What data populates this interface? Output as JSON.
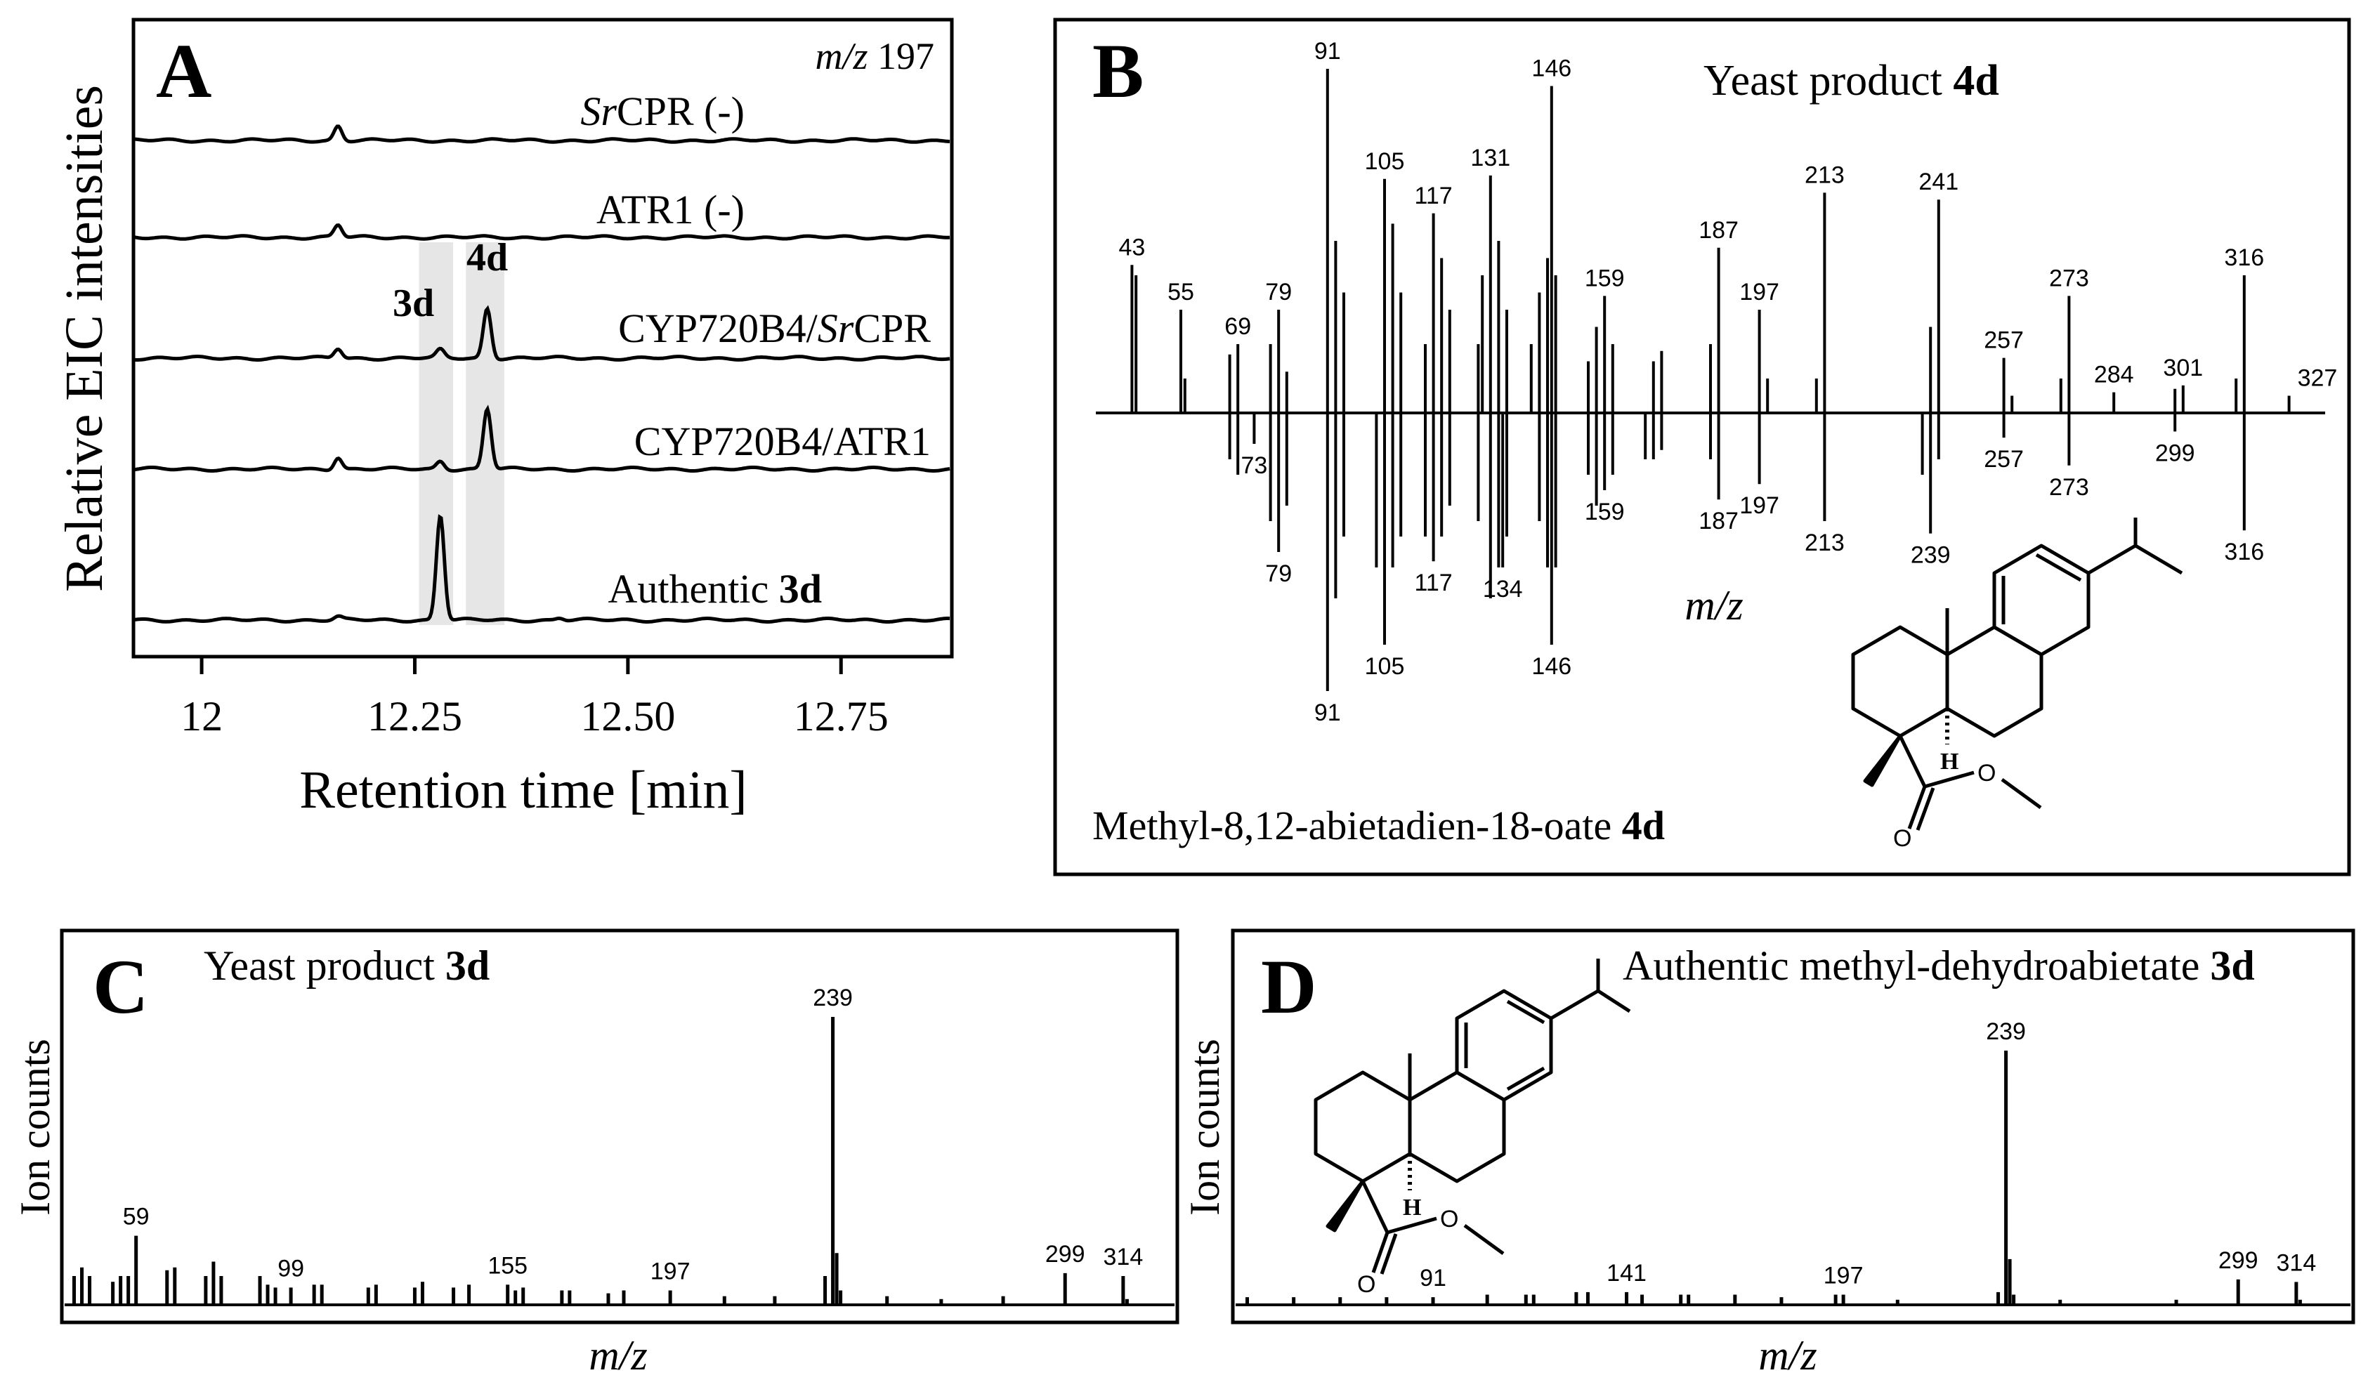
{
  "figure": {
    "colors": {
      "ink": "#000000",
      "highlight": "#e6e6e6",
      "background": "#ffffff"
    }
  },
  "chart_data": [
    {
      "id": "A",
      "panel_letter": "A",
      "type": "line",
      "ylabel": "Relative EIC intensities",
      "xlabel": "Retention time  [min]",
      "mz_label_prefix": "m/z",
      "mz_label_value": "197",
      "xlim": [
        11.92,
        12.88
      ],
      "x_ticks": [
        {
          "value": 12,
          "label": "12"
        },
        {
          "value": 12.25,
          "label": "12.25"
        },
        {
          "value": 12.5,
          "label": "12.50"
        },
        {
          "value": 12.75,
          "label": "12.75"
        }
      ],
      "shaded_regions": [
        {
          "label": "3d",
          "from": 12.255,
          "to": 12.295
        },
        {
          "label": "4d",
          "from": 12.31,
          "to": 12.355
        }
      ],
      "peak_labels": [
        {
          "text": "3d",
          "x": 12.255
        },
        {
          "text": "4d",
          "x": 12.335
        }
      ],
      "series": [
        {
          "name_prefix": "Sr",
          "name_rest": "CPR (-)",
          "name_bold": "",
          "peaks": [
            {
              "x": 12.16,
              "height": 0.18
            }
          ]
        },
        {
          "name_prefix": "",
          "name_rest": "ATR1 (-)",
          "name_bold": "",
          "peaks": [
            {
              "x": 12.16,
              "height": 0.15
            }
          ]
        },
        {
          "name_prefix": "",
          "name_rest": "CYP720B4/",
          "name_italic": "Sr",
          "name_tail": "CPR",
          "name_bold": "",
          "peaks": [
            {
              "x": 12.16,
              "height": 0.12
            },
            {
              "x": 12.28,
              "height": 0.1
            },
            {
              "x": 12.335,
              "height": 0.62
            }
          ]
        },
        {
          "name_prefix": "",
          "name_rest": "CYP720B4/ATR1",
          "name_bold": "",
          "peaks": [
            {
              "x": 12.16,
              "height": 0.15
            },
            {
              "x": 12.28,
              "height": 0.1
            },
            {
              "x": 12.335,
              "height": 0.75
            }
          ]
        },
        {
          "name_prefix": "",
          "name_rest": "Authentic ",
          "name_bold": "3d",
          "peaks": [
            {
              "x": 12.16,
              "height": 0.04
            },
            {
              "x": 12.28,
              "height": 1.3
            },
            {
              "x": 12.42,
              "height": 0.03
            }
          ]
        }
      ]
    },
    {
      "id": "B",
      "panel_letter": "B",
      "type": "bar",
      "title_plain": "Yeast product ",
      "title_bold": "4d",
      "xlabel": "m/z",
      "compound_plain": "Methyl-8,12-abietadien-18-oate  ",
      "compound_bold": "4d",
      "xlim": [
        35,
        335
      ],
      "top_spectrum": [
        [
          43,
          0.43
        ],
        [
          44,
          0.4
        ],
        [
          55,
          0.3
        ],
        [
          56,
          0.1
        ],
        [
          67,
          0.17
        ],
        [
          69,
          0.2
        ],
        [
          77,
          0.2
        ],
        [
          79,
          0.3
        ],
        [
          81,
          0.12
        ],
        [
          91,
          1.0
        ],
        [
          93,
          0.5
        ],
        [
          95,
          0.35
        ],
        [
          105,
          0.68
        ],
        [
          107,
          0.55
        ],
        [
          109,
          0.35
        ],
        [
          115,
          0.2
        ],
        [
          117,
          0.58
        ],
        [
          119,
          0.45
        ],
        [
          121,
          0.3
        ],
        [
          128,
          0.2
        ],
        [
          129,
          0.4
        ],
        [
          131,
          0.69
        ],
        [
          133,
          0.5
        ],
        [
          135,
          0.3
        ],
        [
          141,
          0.2
        ],
        [
          143,
          0.35
        ],
        [
          145,
          0.45
        ],
        [
          146,
          0.95
        ],
        [
          147,
          0.4
        ],
        [
          155,
          0.15
        ],
        [
          157,
          0.25
        ],
        [
          159,
          0.34
        ],
        [
          161,
          0.2
        ],
        [
          171,
          0.15
        ],
        [
          173,
          0.18
        ],
        [
          185,
          0.2
        ],
        [
          187,
          0.48
        ],
        [
          197,
          0.3
        ],
        [
          199,
          0.1
        ],
        [
          211,
          0.1
        ],
        [
          213,
          0.64
        ],
        [
          239,
          0.25
        ],
        [
          241,
          0.62
        ],
        [
          257,
          0.16
        ],
        [
          259,
          0.05
        ],
        [
          271,
          0.1
        ],
        [
          273,
          0.34
        ],
        [
          284,
          0.06
        ],
        [
          299,
          0.07
        ],
        [
          301,
          0.08
        ],
        [
          314,
          0.1
        ],
        [
          316,
          0.4
        ],
        [
          327,
          0.05
        ]
      ],
      "bottom_spectrum": [
        [
          67,
          0.15
        ],
        [
          69,
          0.2
        ],
        [
          73,
          0.1
        ],
        [
          77,
          0.35
        ],
        [
          79,
          0.45
        ],
        [
          81,
          0.3
        ],
        [
          91,
          0.9
        ],
        [
          93,
          0.6
        ],
        [
          95,
          0.4
        ],
        [
          103,
          0.5
        ],
        [
          105,
          0.75
        ],
        [
          107,
          0.5
        ],
        [
          109,
          0.4
        ],
        [
          115,
          0.4
        ],
        [
          117,
          0.48
        ],
        [
          119,
          0.4
        ],
        [
          121,
          0.3
        ],
        [
          128,
          0.35
        ],
        [
          131,
          0.6
        ],
        [
          133,
          0.5
        ],
        [
          134,
          0.5
        ],
        [
          135,
          0.4
        ],
        [
          143,
          0.35
        ],
        [
          145,
          0.5
        ],
        [
          146,
          0.75
        ],
        [
          147,
          0.5
        ],
        [
          155,
          0.2
        ],
        [
          157,
          0.3
        ],
        [
          159,
          0.25
        ],
        [
          161,
          0.2
        ],
        [
          169,
          0.15
        ],
        [
          171,
          0.15
        ],
        [
          173,
          0.12
        ],
        [
          185,
          0.15
        ],
        [
          187,
          0.28
        ],
        [
          197,
          0.23
        ],
        [
          213,
          0.35
        ],
        [
          237,
          0.2
        ],
        [
          239,
          0.39
        ],
        [
          241,
          0.15
        ],
        [
          257,
          0.08
        ],
        [
          273,
          0.17
        ],
        [
          299,
          0.06
        ],
        [
          316,
          0.38
        ]
      ],
      "top_labels": [
        "43",
        "55",
        "69",
        "79",
        "91",
        "105",
        "117",
        "131",
        "146",
        "159",
        "187",
        "197",
        "213",
        "241",
        "257",
        "273",
        "284",
        "301",
        "316",
        "327"
      ],
      "bottom_labels": [
        "73",
        "79",
        "91",
        "105",
        "117",
        "134",
        "146",
        "159",
        "187",
        "197",
        "213",
        "239",
        "257",
        "273",
        "299",
        "316"
      ]
    },
    {
      "id": "C",
      "panel_letter": "C",
      "type": "bar",
      "title_plain": "Yeast product ",
      "title_bold": "3d",
      "ylabel": "Ion counts",
      "xlabel": "m/z",
      "xlim": [
        42,
        326
      ],
      "spectrum": [
        [
          43,
          0.1
        ],
        [
          45,
          0.13
        ],
        [
          47,
          0.1
        ],
        [
          53,
          0.08
        ],
        [
          55,
          0.1
        ],
        [
          57,
          0.1
        ],
        [
          59,
          0.24
        ],
        [
          67,
          0.12
        ],
        [
          69,
          0.13
        ],
        [
          77,
          0.1
        ],
        [
          79,
          0.15
        ],
        [
          81,
          0.1
        ],
        [
          91,
          0.1
        ],
        [
          93,
          0.07
        ],
        [
          95,
          0.06
        ],
        [
          99,
          0.06
        ],
        [
          105,
          0.07
        ],
        [
          107,
          0.07
        ],
        [
          119,
          0.06
        ],
        [
          121,
          0.07
        ],
        [
          131,
          0.06
        ],
        [
          133,
          0.08
        ],
        [
          141,
          0.06
        ],
        [
          145,
          0.07
        ],
        [
          155,
          0.07
        ],
        [
          157,
          0.05
        ],
        [
          159,
          0.06
        ],
        [
          169,
          0.05
        ],
        [
          171,
          0.05
        ],
        [
          181,
          0.04
        ],
        [
          185,
          0.05
        ],
        [
          197,
          0.05
        ],
        [
          211,
          0.03
        ],
        [
          224,
          0.03
        ],
        [
          237,
          0.1
        ],
        [
          239,
          1.0
        ],
        [
          240,
          0.18
        ],
        [
          241,
          0.05
        ],
        [
          253,
          0.03
        ],
        [
          267,
          0.02
        ],
        [
          283,
          0.03
        ],
        [
          299,
          0.11
        ],
        [
          314,
          0.1
        ],
        [
          315,
          0.02
        ]
      ],
      "labels": [
        "59",
        "99",
        "155",
        "197",
        "239",
        "299",
        "314"
      ]
    },
    {
      "id": "D",
      "panel_letter": "D",
      "type": "bar",
      "title_plain": "Authentic methyl-dehydroabietate ",
      "title_bold": "3d",
      "ylabel": "Ion counts",
      "xlabel": "m/z",
      "xlim": [
        42,
        326
      ],
      "spectrum": [
        [
          43,
          0.03
        ],
        [
          55,
          0.03
        ],
        [
          67,
          0.03
        ],
        [
          79,
          0.03
        ],
        [
          91,
          0.03
        ],
        [
          105,
          0.04
        ],
        [
          115,
          0.04
        ],
        [
          117,
          0.04
        ],
        [
          128,
          0.05
        ],
        [
          131,
          0.05
        ],
        [
          141,
          0.05
        ],
        [
          145,
          0.04
        ],
        [
          155,
          0.04
        ],
        [
          157,
          0.04
        ],
        [
          169,
          0.04
        ],
        [
          181,
          0.03
        ],
        [
          195,
          0.04
        ],
        [
          197,
          0.04
        ],
        [
          211,
          0.02
        ],
        [
          237,
          0.05
        ],
        [
          239,
          1.0
        ],
        [
          240,
          0.18
        ],
        [
          241,
          0.04
        ],
        [
          253,
          0.02
        ],
        [
          283,
          0.02
        ],
        [
          299,
          0.1
        ],
        [
          314,
          0.09
        ],
        [
          315,
          0.02
        ]
      ],
      "labels": [
        "91",
        "141",
        "197",
        "239",
        "299",
        "314"
      ]
    }
  ]
}
